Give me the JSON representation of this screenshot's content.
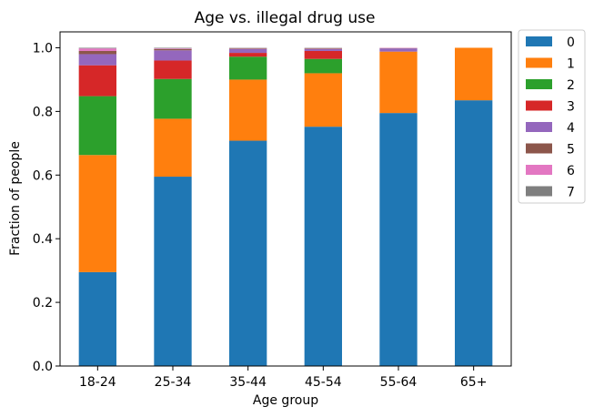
{
  "chart_data": {
    "type": "bar",
    "stacked": true,
    "title": "Age vs. illegal drug use",
    "xlabel": "Age group",
    "ylabel": "Fraction of people",
    "ylim": [
      0,
      1.05
    ],
    "yticks": [
      "0.0",
      "0.2",
      "0.4",
      "0.6",
      "0.8",
      "1.0"
    ],
    "categories": [
      "18-24",
      "25-34",
      "35-44",
      "45-54",
      "55-64",
      "65+"
    ],
    "legend_position": "outside-top-right",
    "grid": false,
    "series": [
      {
        "name": "0",
        "color": "#1f77b4",
        "values": [
          0.295,
          0.595,
          0.708,
          0.752,
          0.795,
          0.835
        ]
      },
      {
        "name": "1",
        "color": "#ff7f0e",
        "values": [
          0.368,
          0.182,
          0.192,
          0.168,
          0.193,
          0.165
        ]
      },
      {
        "name": "2",
        "color": "#2ca02c",
        "values": [
          0.185,
          0.125,
          0.072,
          0.045,
          0.0,
          0.0
        ]
      },
      {
        "name": "3",
        "color": "#d62728",
        "values": [
          0.097,
          0.058,
          0.012,
          0.025,
          0.0,
          0.0
        ]
      },
      {
        "name": "4",
        "color": "#9467bd",
        "values": [
          0.035,
          0.032,
          0.012,
          0.006,
          0.01,
          0.0
        ]
      },
      {
        "name": "5",
        "color": "#8c564b",
        "values": [
          0.01,
          0.004,
          0.002,
          0.002,
          0.001,
          0.0
        ]
      },
      {
        "name": "6",
        "color": "#e377c2",
        "values": [
          0.008,
          0.002,
          0.001,
          0.001,
          0.001,
          0.0
        ]
      },
      {
        "name": "7",
        "color": "#7f7f7f",
        "values": [
          0.002,
          0.002,
          0.001,
          0.001,
          0.0,
          0.0
        ]
      }
    ]
  }
}
